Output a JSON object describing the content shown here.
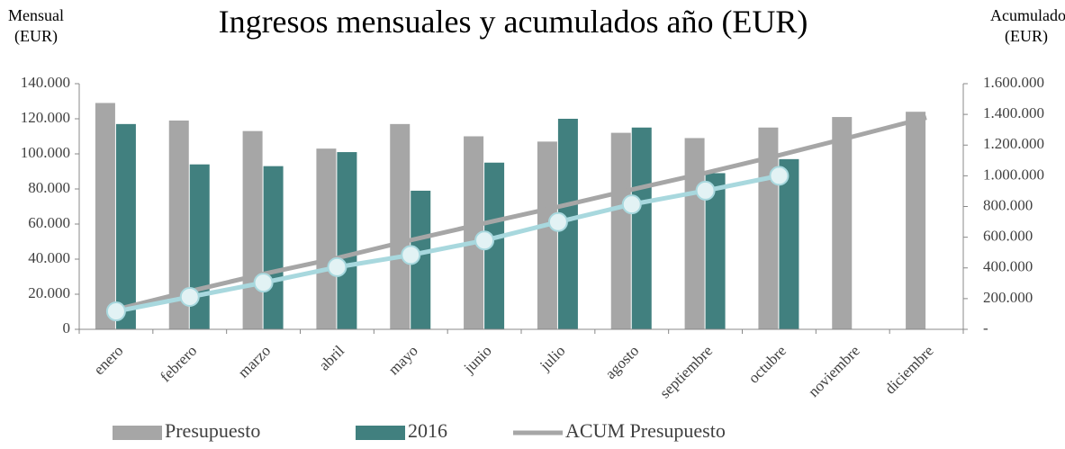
{
  "chart_data": {
    "type": "bar_line",
    "title": "Ingresos mensuales y acumulados año (EUR)",
    "y_label": "Mensual (EUR)",
    "y2_label": "Acumulado (EUR)",
    "categories": [
      "enero",
      "febrero",
      "marzo",
      "abril",
      "mayo",
      "junio",
      "julio",
      "agosto",
      "septiembre",
      "octubre",
      "noviembre",
      "diciembre"
    ],
    "ylim": [
      0,
      140000
    ],
    "yticks": [
      0,
      {
        "value": 20000,
        "label": "20.000"
      },
      {
        "value": 40000,
        "label": "40.000"
      },
      {
        "value": 60000,
        "label": "60.000"
      },
      {
        "value": 80000,
        "label": "80.000"
      },
      {
        "value": 100000,
        "label": "100.000"
      },
      {
        "value": 120000,
        "label": "120.000"
      },
      {
        "value": 140000,
        "label": "140.000"
      }
    ],
    "y2lim": [
      0,
      1600000
    ],
    "y2ticks": [
      {
        "value": 0,
        "label": "-"
      },
      {
        "value": 200000,
        "label": "200.000"
      },
      {
        "value": 400000,
        "label": "400.000"
      },
      {
        "value": 600000,
        "label": "600.000"
      },
      {
        "value": 800000,
        "label": "800.000"
      },
      {
        "value": 1000000,
        "label": "1.000.000"
      },
      {
        "value": 1200000,
        "label": "1.200.000"
      },
      {
        "value": 1400000,
        "label": "1.400.000"
      },
      {
        "value": 1600000,
        "label": "1.600.000"
      }
    ],
    "series": [
      {
        "name": "Presupuesto",
        "kind": "bar",
        "color": "#a6a6a6",
        "values": [
          129000,
          119000,
          113000,
          103000,
          117000,
          110000,
          107000,
          112000,
          109000,
          115000,
          121000,
          124000
        ]
      },
      {
        "name": "2016",
        "kind": "bar",
        "color": "#41807f",
        "values": [
          117000,
          94000,
          93000,
          101000,
          79000,
          95000,
          120000,
          115000,
          89000,
          97000,
          null,
          null
        ]
      },
      {
        "name": "ACUM Presupuesto",
        "kind": "line",
        "axis": "y2",
        "color": "#a6a6a6",
        "values": [
          129000,
          248000,
          361000,
          464000,
          581000,
          691000,
          798000,
          910000,
          1019000,
          1134000,
          1255000,
          1379000
        ]
      },
      {
        "kind": "line",
        "axis": "y2",
        "color": "#a8d8de",
        "markers": true,
        "values": [
          117000,
          211000,
          304000,
          405000,
          484000,
          579000,
          699000,
          814000,
          903000,
          1000000,
          null,
          null
        ]
      }
    ]
  }
}
